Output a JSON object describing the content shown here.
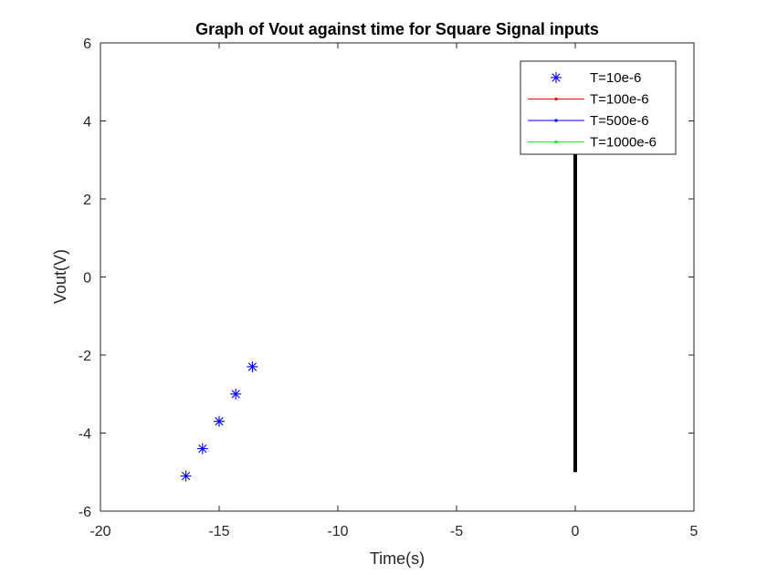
{
  "chart_data": {
    "type": "line",
    "title": "Graph of Vout against time for Square Signal inputs",
    "xlabel": "Time(s)",
    "ylabel": "Vout(V)",
    "xlim": [
      -20,
      5
    ],
    "ylim": [
      -6,
      6
    ],
    "xticks": [
      -20,
      -15,
      -10,
      -5,
      0,
      5
    ],
    "yticks": [
      -6,
      -4,
      -2,
      0,
      2,
      4,
      6
    ],
    "grid": false,
    "legend_position": "top-right",
    "series": [
      {
        "name": "T=10e-6",
        "marker": "asterisk",
        "color": "#0000ff",
        "x": [
          -16.4,
          -15.7,
          -15.0,
          -14.3,
          -13.6
        ],
        "y": [
          -5.1,
          -4.4,
          -3.7,
          -3.0,
          -2.3
        ]
      },
      {
        "name": "T=100e-6",
        "marker": "line",
        "color": "#ff0000",
        "x": [],
        "y": []
      },
      {
        "name": "T=500e-6",
        "marker": "line",
        "color": "#0000ff",
        "x": [],
        "y": []
      },
      {
        "name": "T=1000e-6",
        "marker": "line",
        "color": "#00ff00",
        "x": [],
        "y": []
      }
    ],
    "vertical_segment": {
      "color": "#000000",
      "x": 0,
      "y_start": -5.0,
      "y_end": 3.2
    }
  }
}
